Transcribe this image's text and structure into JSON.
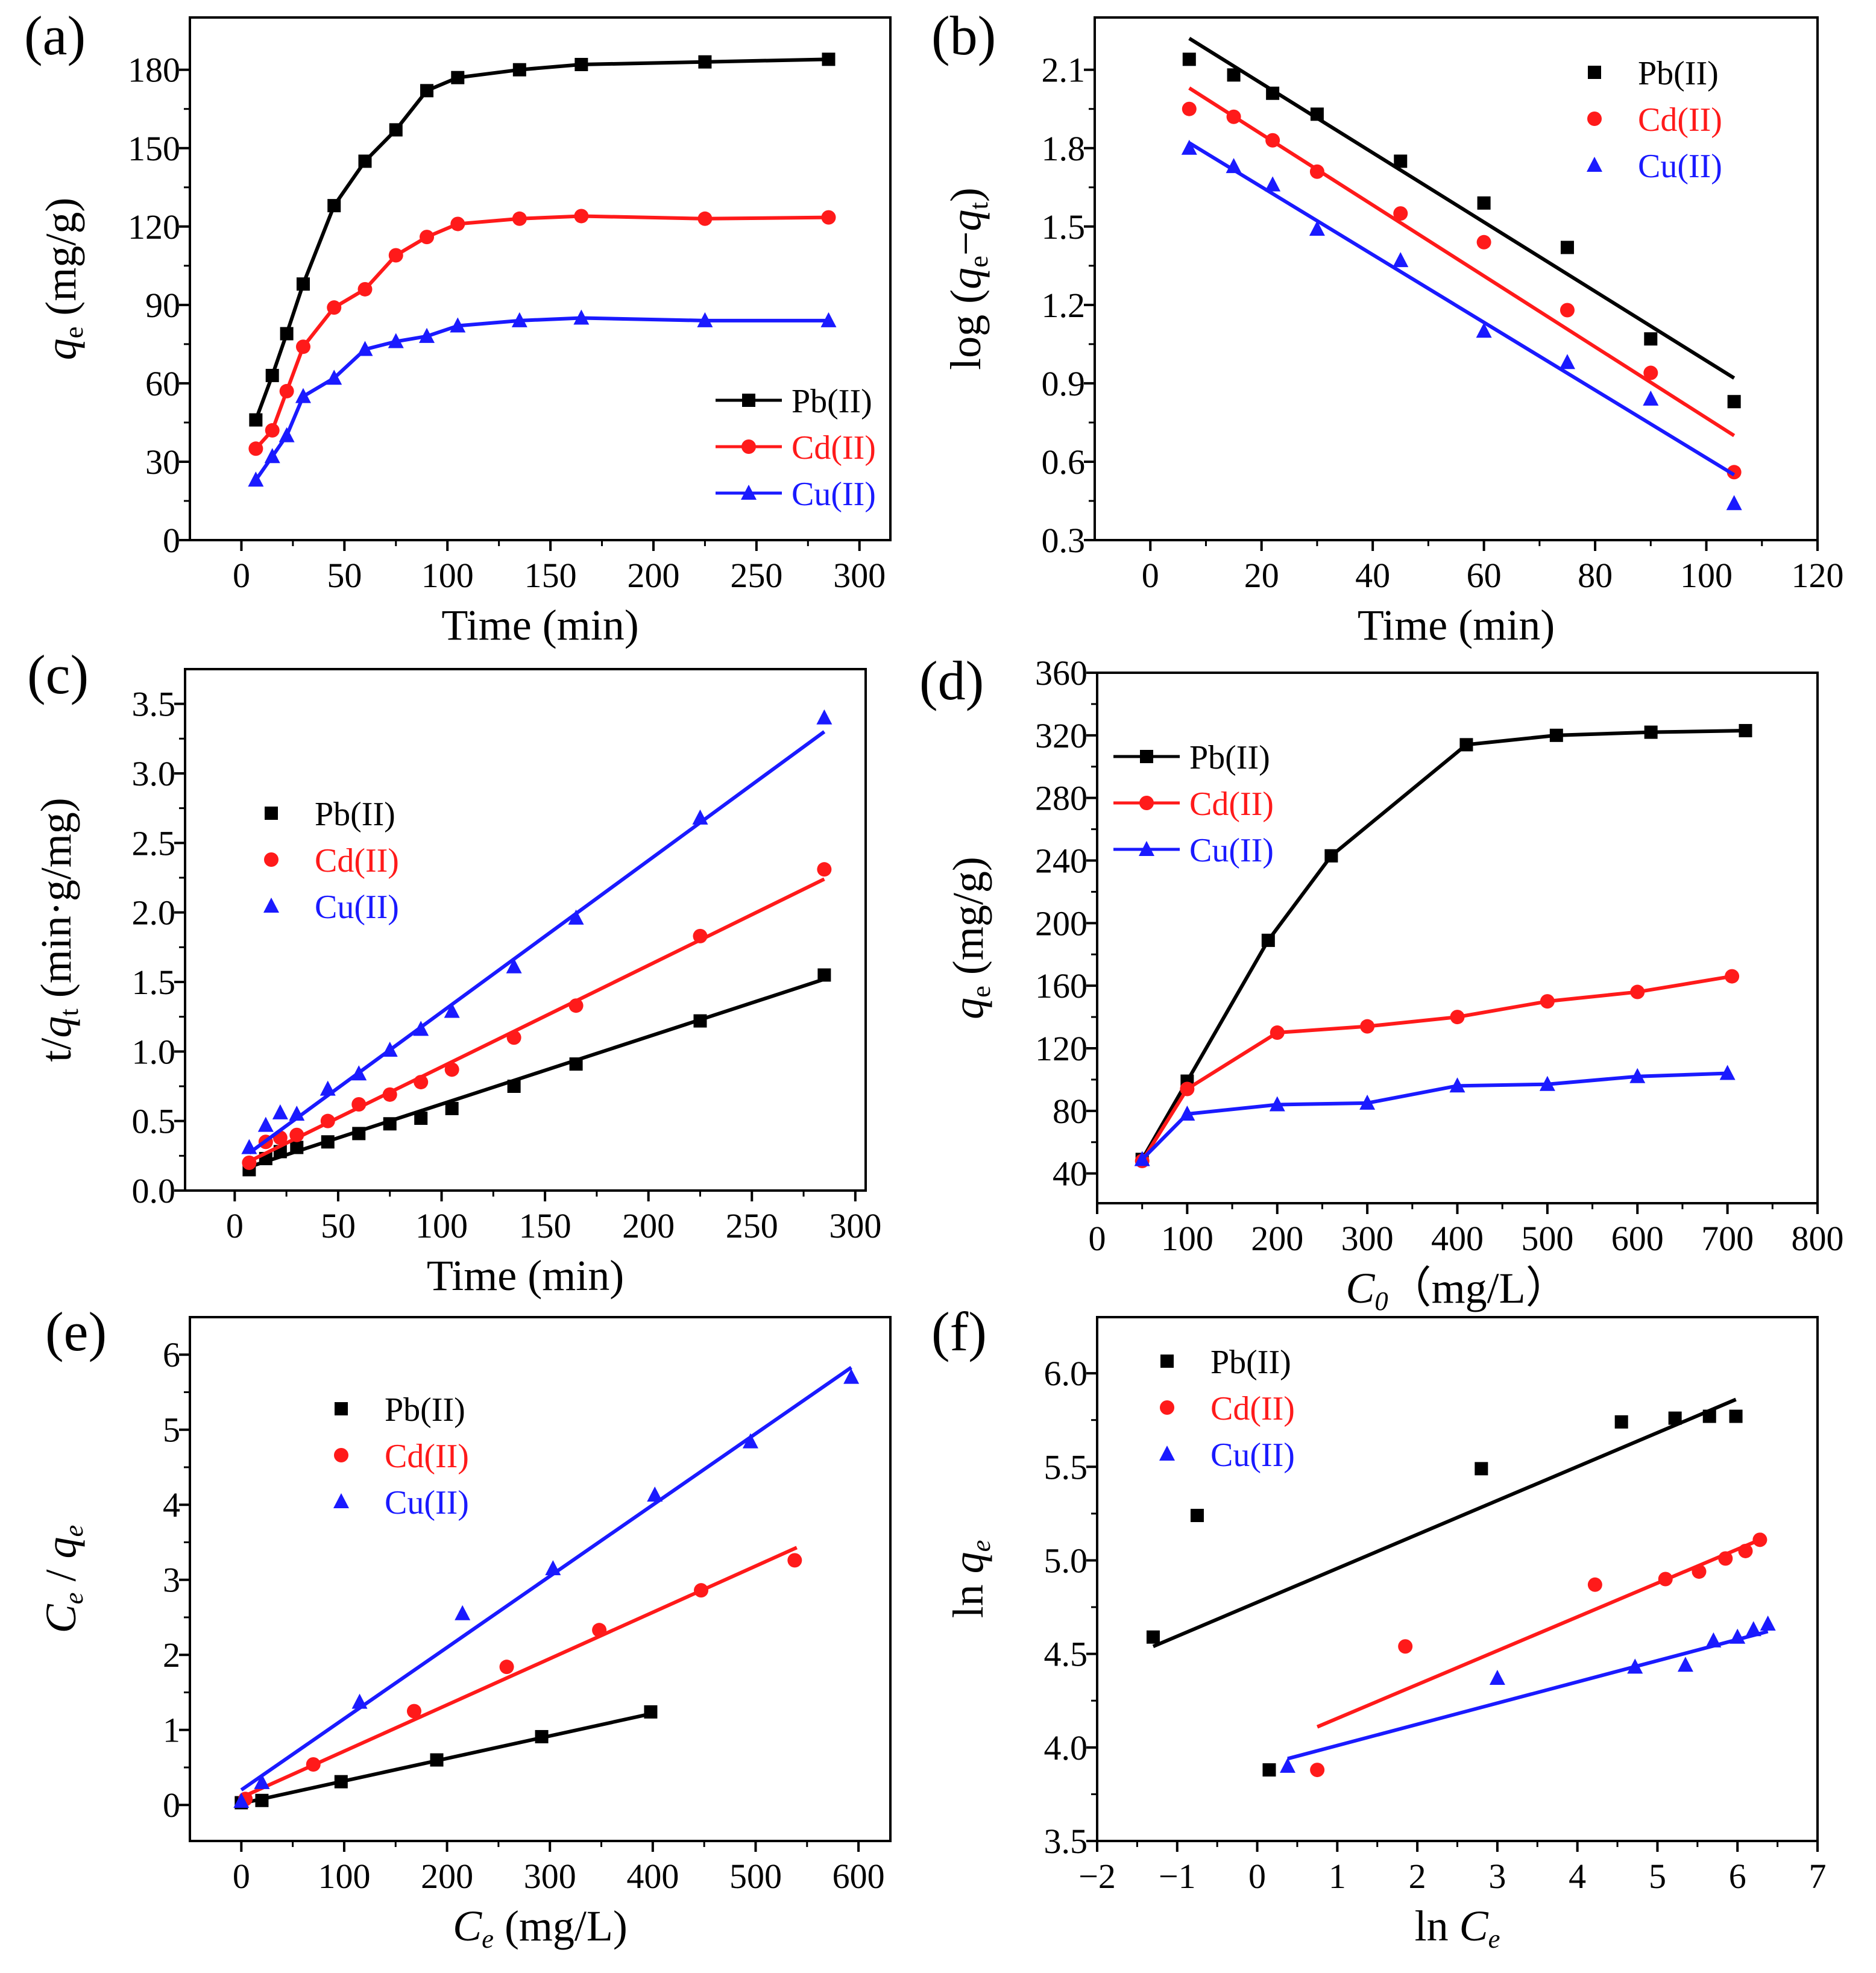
{
  "colors": {
    "Pb(II)": "#000000",
    "Cd(II)": "#ff1a1a",
    "Cu(II)": "#1a1aff"
  },
  "chart_data": [
    {
      "panel": "(a)",
      "type": "line",
      "xlabel": [
        {
          "t": "Time (min)"
        }
      ],
      "ylabel": [
        {
          "t": "q",
          "i": true
        },
        {
          "t": "e",
          "sub": true
        },
        {
          "t": " (mg/g)"
        }
      ],
      "xlim": [
        -25,
        315
      ],
      "ylim": [
        0,
        200
      ],
      "xticks": [
        0,
        50,
        100,
        150,
        200,
        250,
        300
      ],
      "yticks": [
        0,
        30,
        60,
        90,
        120,
        150,
        180
      ],
      "legend": "bottom-right",
      "series": [
        {
          "name": "Pb(II)",
          "marker": "square",
          "connect": true,
          "x": [
            7,
            15,
            22,
            30,
            45,
            60,
            75,
            90,
            105,
            135,
            165,
            225,
            285
          ],
          "y": [
            46,
            63,
            79,
            98,
            128,
            145,
            157,
            172,
            177,
            180,
            182,
            183,
            184
          ]
        },
        {
          "name": "Cd(II)",
          "marker": "circle",
          "connect": true,
          "x": [
            7,
            15,
            22,
            30,
            45,
            60,
            75,
            90,
            105,
            135,
            165,
            225,
            285
          ],
          "y": [
            35,
            42,
            57,
            74,
            89,
            96,
            109,
            116,
            121,
            123,
            124,
            123,
            123.5
          ]
        },
        {
          "name": "Cu(II)",
          "marker": "triangle",
          "connect": true,
          "x": [
            7,
            15,
            22,
            30,
            45,
            60,
            75,
            90,
            105,
            135,
            165,
            225,
            285
          ],
          "y": [
            23,
            32,
            40,
            55,
            62,
            73,
            76,
            78,
            82,
            84,
            85,
            84,
            84
          ]
        }
      ]
    },
    {
      "panel": "(b)",
      "type": "scatter",
      "xlabel": [
        {
          "t": "Time (min)"
        }
      ],
      "ylabel": [
        {
          "t": "log ("
        },
        {
          "t": "q",
          "i": true
        },
        {
          "t": "e",
          "sub": true
        },
        {
          "t": "−"
        },
        {
          "t": "q",
          "i": true
        },
        {
          "t": "t",
          "sub": true
        },
        {
          "t": ")"
        }
      ],
      "xlim": [
        -10,
        120
      ],
      "ylim": [
        0.3,
        2.3
      ],
      "xticks": [
        0,
        20,
        40,
        60,
        80,
        100,
        120
      ],
      "yticks": [
        0.3,
        0.6,
        0.9,
        1.2,
        1.5,
        1.8,
        2.1
      ],
      "legend": "top-right",
      "series": [
        {
          "name": "Pb(II)",
          "marker": "square",
          "x": [
            7,
            15,
            22,
            30,
            45,
            60,
            75,
            90,
            105
          ],
          "y": [
            2.14,
            2.08,
            2.01,
            1.93,
            1.75,
            1.59,
            1.42,
            1.07,
            0.83
          ],
          "fit": [
            [
              7,
              2.22
            ],
            [
              105,
              0.92
            ]
          ]
        },
        {
          "name": "Cd(II)",
          "marker": "circle",
          "x": [
            7,
            15,
            22,
            30,
            45,
            60,
            75,
            90,
            105
          ],
          "y": [
            1.95,
            1.92,
            1.83,
            1.71,
            1.55,
            1.44,
            1.18,
            0.94,
            0.56
          ],
          "fit": [
            [
              7,
              2.03
            ],
            [
              105,
              0.7
            ]
          ]
        },
        {
          "name": "Cu(II)",
          "marker": "triangle",
          "x": [
            7,
            15,
            22,
            30,
            45,
            60,
            75,
            90,
            105
          ],
          "y": [
            1.8,
            1.73,
            1.66,
            1.49,
            1.37,
            1.1,
            0.98,
            0.84,
            0.44
          ],
          "fit": [
            [
              7,
              1.82
            ],
            [
              105,
              0.55
            ]
          ]
        }
      ]
    },
    {
      "panel": "(c)",
      "type": "scatter",
      "xlabel": [
        {
          "t": "Time (min)"
        }
      ],
      "ylabel": [
        {
          "t": "t/"
        },
        {
          "t": "q",
          "i": true
        },
        {
          "t": "t",
          "sub": true
        },
        {
          "t": " (min·g/mg)"
        }
      ],
      "xlim": [
        -24,
        305
      ],
      "ylim": [
        0,
        3.75
      ],
      "xticks": [
        0,
        50,
        100,
        150,
        200,
        250,
        300
      ],
      "yticks": [
        0.0,
        0.5,
        1.0,
        1.5,
        2.0,
        2.5,
        3.0,
        3.5
      ],
      "legend": "center-left",
      "series": [
        {
          "name": "Pb(II)",
          "marker": "square",
          "x": [
            7,
            15,
            22,
            30,
            45,
            60,
            75,
            90,
            105,
            135,
            165,
            225,
            285
          ],
          "y": [
            0.15,
            0.23,
            0.28,
            0.31,
            0.35,
            0.41,
            0.48,
            0.52,
            0.59,
            0.75,
            0.91,
            1.22,
            1.55
          ],
          "fit": [
            [
              7,
              0.17
            ],
            [
              285,
              1.52
            ]
          ]
        },
        {
          "name": "Cd(II)",
          "marker": "circle",
          "x": [
            7,
            15,
            22,
            30,
            45,
            60,
            75,
            90,
            105,
            135,
            165,
            225,
            285
          ],
          "y": [
            0.2,
            0.35,
            0.38,
            0.4,
            0.5,
            0.62,
            0.69,
            0.78,
            0.87,
            1.1,
            1.33,
            1.83,
            2.31
          ],
          "fit": [
            [
              7,
              0.21
            ],
            [
              285,
              2.24
            ]
          ]
        },
        {
          "name": "Cu(II)",
          "marker": "triangle",
          "x": [
            7,
            15,
            22,
            30,
            45,
            60,
            75,
            90,
            105,
            135,
            165,
            225,
            285
          ],
          "y": [
            0.31,
            0.47,
            0.56,
            0.55,
            0.73,
            0.84,
            1.01,
            1.16,
            1.29,
            1.61,
            1.96,
            2.68,
            3.4
          ],
          "fit": [
            [
              7,
              0.27
            ],
            [
              285,
              3.3
            ]
          ]
        }
      ]
    },
    {
      "panel": "(d)",
      "type": "line",
      "xlabel": [
        {
          "t": "C",
          "i": true
        },
        {
          "t": "0",
          "i": true,
          "sub": true
        },
        {
          "t": "（mg/L）"
        }
      ],
      "ylabel": [
        {
          "t": "q",
          "i": true
        },
        {
          "t": "e",
          "sub": true
        },
        {
          "t": " (mg/g)"
        }
      ],
      "xlim": [
        0,
        800
      ],
      "ylim": [
        21,
        360
      ],
      "xticks": [
        0,
        100,
        200,
        300,
        400,
        500,
        600,
        700,
        800
      ],
      "yticks": [
        40,
        80,
        120,
        160,
        200,
        240,
        280,
        320,
        360
      ],
      "legend": "top-left",
      "series": [
        {
          "name": "Pb(II)",
          "marker": "square",
          "connect": true,
          "x": [
            50,
            100,
            190,
            260,
            410,
            510,
            615,
            720
          ],
          "y": [
            49,
            99,
            189,
            243,
            314,
            320,
            322,
            323
          ]
        },
        {
          "name": "Cd(II)",
          "marker": "circle",
          "connect": true,
          "x": [
            50,
            100,
            200,
            300,
            400,
            500,
            600,
            705
          ],
          "y": [
            48,
            94,
            130,
            134,
            140,
            150,
            156,
            166
          ]
        },
        {
          "name": "Cu(II)",
          "marker": "triangle",
          "connect": true,
          "x": [
            50,
            100,
            200,
            300,
            400,
            500,
            600,
            700
          ],
          "y": [
            49,
            78,
            84,
            85,
            96,
            97,
            102,
            104
          ]
        }
      ]
    },
    {
      "panel": "(e)",
      "type": "scatter",
      "xlabel": [
        {
          "t": "C",
          "i": true
        },
        {
          "t": "e",
          "i": true,
          "sub": true
        },
        {
          "t": " (mg/L)"
        }
      ],
      "ylabel": [
        {
          "t": "C",
          "i": true
        },
        {
          "t": "e",
          "i": true,
          "sub": true
        },
        {
          "t": " / "
        },
        {
          "t": "q",
          "i": true
        },
        {
          "t": "e",
          "i": true,
          "sub": true
        }
      ],
      "xlim": [
        -50,
        631
      ],
      "ylim": [
        -0.48,
        6.5
      ],
      "xticks": [
        0,
        100,
        200,
        300,
        400,
        500,
        600
      ],
      "yticks": [
        0,
        1,
        2,
        3,
        4,
        5,
        6
      ],
      "legend": "top-left",
      "series": [
        {
          "name": "Pb(II)",
          "marker": "square",
          "x": [
            0,
            20,
            97,
            190,
            292,
            398
          ],
          "y": [
            0.03,
            0.06,
            0.31,
            0.6,
            0.91,
            1.24
          ],
          "fit": [
            [
              0,
              0.02
            ],
            [
              400,
              1.22
            ]
          ]
        },
        {
          "name": "Cd(II)",
          "marker": "circle",
          "x": [
            4,
            70,
            168,
            258,
            348,
            447,
            538
          ],
          "y": [
            0.08,
            0.54,
            1.25,
            1.84,
            2.33,
            2.86,
            3.26
          ],
          "fit": [
            [
              0,
              0.1
            ],
            [
              540,
              3.43
            ]
          ]
        },
        {
          "name": "Cu(II)",
          "marker": "triangle",
          "x": [
            0,
            20,
            115,
            215,
            303,
            402,
            495,
            593
          ],
          "y": [
            0.05,
            0.3,
            1.37,
            2.55,
            3.15,
            4.13,
            4.84,
            5.7
          ],
          "fit": [
            [
              0,
              0.2
            ],
            [
              593,
              5.83
            ]
          ]
        }
      ]
    },
    {
      "panel": "(f)",
      "type": "scatter",
      "xlabel": [
        {
          "t": "ln "
        },
        {
          "t": "C",
          "i": true
        },
        {
          "t": "e",
          "i": true,
          "sub": true
        }
      ],
      "ylabel": [
        {
          "t": "ln "
        },
        {
          "t": "q",
          "i": true
        },
        {
          "t": "e",
          "i": true,
          "sub": true
        }
      ],
      "xlim": [
        -2,
        7
      ],
      "ylim": [
        3.5,
        6.3
      ],
      "xticks": [
        -2,
        -1,
        0,
        1,
        2,
        3,
        4,
        5,
        6,
        7
      ],
      "yticks": [
        3.5,
        4.0,
        4.5,
        5.0,
        5.5,
        6.0
      ],
      "legend": "top-left",
      "series": [
        {
          "name": "Pb(II)",
          "marker": "square",
          "x": [
            -1.3,
            -0.75,
            0.15,
            2.8,
            4.55,
            5.22,
            5.65,
            5.98
          ],
          "y": [
            4.59,
            5.24,
            3.88,
            5.49,
            5.74,
            5.76,
            5.77,
            5.77
          ],
          "fit": [
            [
              -1.3,
              4.54
            ],
            [
              5.98,
              5.86
            ]
          ]
        },
        {
          "name": "Cd(II)",
          "marker": "circle",
          "x": [
            0.75,
            1.85,
            4.22,
            5.1,
            5.52,
            5.85,
            6.1,
            6.28
          ],
          "y": [
            3.88,
            4.54,
            4.87,
            4.9,
            4.94,
            5.01,
            5.05,
            5.11
          ],
          "fit": [
            [
              0.75,
              4.11
            ],
            [
              6.28,
              5.11
            ]
          ]
        },
        {
          "name": "Cu(II)",
          "marker": "triangle",
          "x": [
            0.38,
            3.0,
            4.72,
            5.35,
            5.7,
            6.0,
            6.2,
            6.38
          ],
          "y": [
            3.9,
            4.37,
            4.43,
            4.44,
            4.57,
            4.59,
            4.63,
            4.66
          ],
          "fit": [
            [
              0.38,
              3.94
            ],
            [
              6.38,
              4.62
            ]
          ]
        }
      ]
    }
  ]
}
